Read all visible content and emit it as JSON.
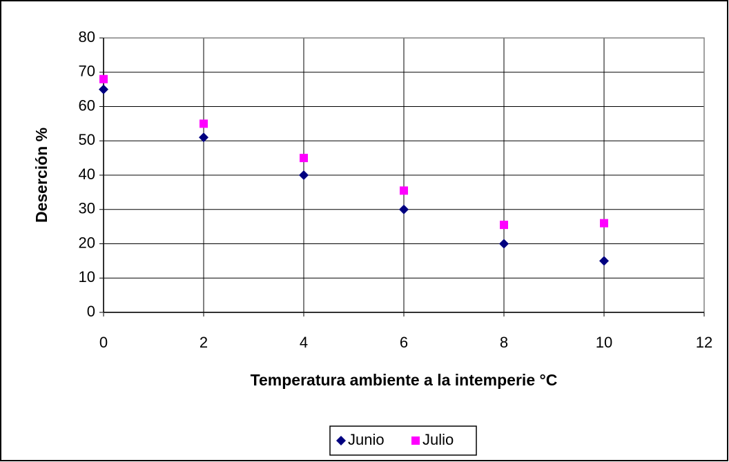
{
  "chart_data": {
    "type": "scatter",
    "x_label": "Temperatura ambiente a la intemperie °C",
    "y_label": "Deserción %",
    "xlim": [
      0,
      12
    ],
    "xticks": [
      0,
      2,
      4,
      6,
      8,
      10,
      12
    ],
    "ylim": [
      0,
      80
    ],
    "yticks": [
      0,
      10,
      20,
      30,
      40,
      50,
      60,
      70,
      80
    ],
    "grid": true,
    "legend": "bottom",
    "series": [
      {
        "name": "Junio",
        "color": "#000080",
        "marker": "diamond",
        "x": [
          0,
          2,
          4,
          6,
          8,
          10
        ],
        "values": [
          65,
          51,
          40,
          30,
          20,
          15
        ]
      },
      {
        "name": "Julio",
        "color": "#ff00ff",
        "marker": "square",
        "x": [
          0,
          2,
          4,
          6,
          8,
          10
        ],
        "values": [
          68,
          55,
          45,
          35.5,
          25.5,
          26
        ]
      }
    ]
  }
}
